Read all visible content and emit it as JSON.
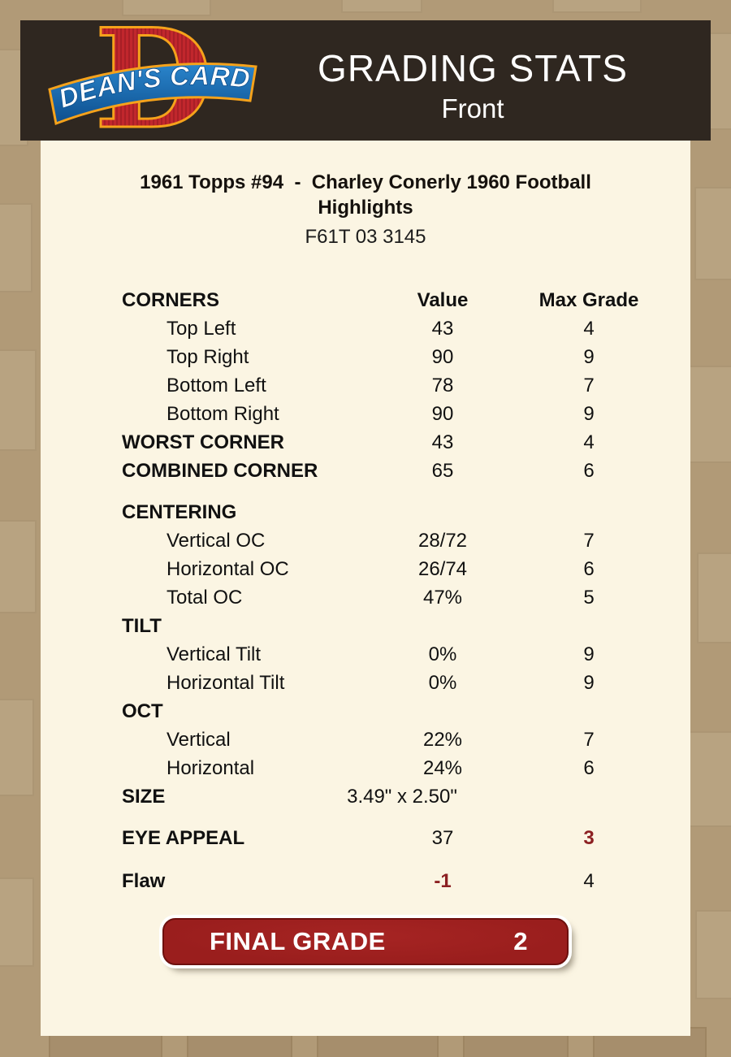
{
  "header": {
    "title": "GRADING STATS",
    "subtitle": "Front",
    "logo_letter": "D",
    "logo_text": "DEAN'S CARDS"
  },
  "card": {
    "title_line1": "1961 Topps #94  -  Charley Conerly 1960 Football",
    "title_line2": "Highlights",
    "code": "F61T 03 3145"
  },
  "table": {
    "header": {
      "label": "CORNERS",
      "value": "Value",
      "max": "Max Grade"
    },
    "rows": [
      {
        "label": "Top Left",
        "value": "43",
        "max": "4",
        "indent": true
      },
      {
        "label": "Top Right",
        "value": "90",
        "max": "9",
        "indent": true
      },
      {
        "label": "Bottom Left",
        "value": "78",
        "max": "7",
        "indent": true
      },
      {
        "label": "Bottom Right",
        "value": "90",
        "max": "9",
        "indent": true
      },
      {
        "label": "WORST CORNER",
        "value": "43",
        "max": "4",
        "bold": true
      },
      {
        "label": "COMBINED CORNER",
        "value": "65",
        "max": "6",
        "bold": true
      },
      {
        "label": "CENTERING",
        "value": "",
        "max": "",
        "bold": true,
        "gap": 16
      },
      {
        "label": "Vertical OC",
        "value": "28/72",
        "max": "7",
        "indent": true
      },
      {
        "label": "Horizontal OC",
        "value": "26/74",
        "max": "6",
        "indent": true
      },
      {
        "label": "Total OC",
        "value": "47%",
        "max": "5",
        "indent": true
      },
      {
        "label": "TILT",
        "value": "",
        "max": "",
        "bold": true
      },
      {
        "label": "Vertical Tilt",
        "value": "0%",
        "max": "9",
        "indent": true
      },
      {
        "label": "Horizontal Tilt",
        "value": "0%",
        "max": "9",
        "indent": true
      },
      {
        "label": "OCT",
        "value": "",
        "max": "",
        "bold": true
      },
      {
        "label": "Vertical",
        "value": "22%",
        "max": "7",
        "indent": true
      },
      {
        "label": "Horizontal",
        "value": "24%",
        "max": "6",
        "indent": true
      },
      {
        "label": "SIZE",
        "value": "3.49\" x 2.50\"",
        "max": "",
        "bold": true,
        "wide": true
      },
      {
        "label": "EYE APPEAL",
        "value": "37",
        "max": "3",
        "bold": true,
        "max_red": true,
        "gap": 16
      },
      {
        "label": "Flaw",
        "value": "-1",
        "max": "4",
        "bold": true,
        "value_red": true,
        "gap": 18
      }
    ]
  },
  "final_grade": {
    "label": "FINAL GRADE",
    "value": "2"
  },
  "colors": {
    "page_bg": "#b19a77",
    "header_bg": "#2f2720",
    "panel_bg": "#fbf5e3",
    "accent_red": "#8c2022",
    "button_red": "#9a1e1d",
    "logo_red": "#c1272d",
    "logo_blue": "#1b6fb5",
    "logo_orange": "#f5a21b"
  }
}
